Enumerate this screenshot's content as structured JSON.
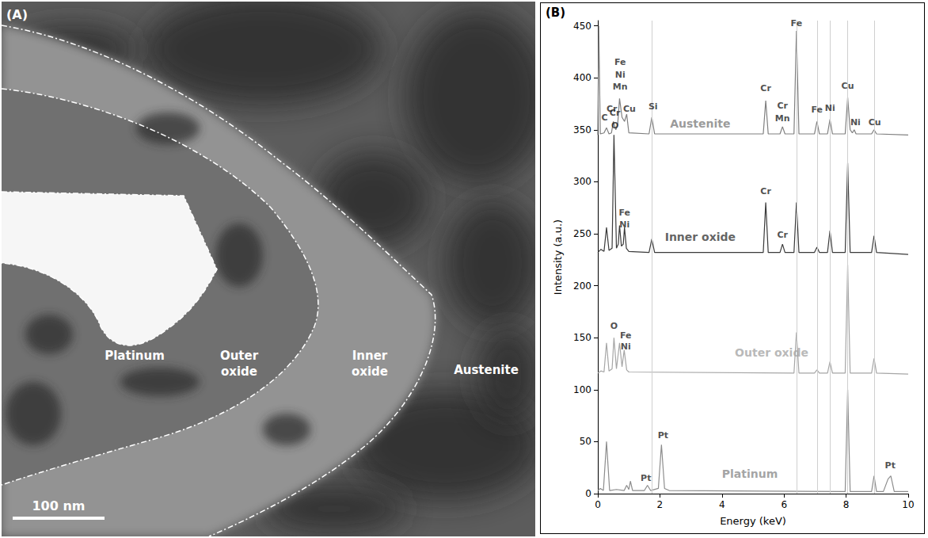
{
  "panel_a": {
    "label": "(A)",
    "regions": [
      "Platinum",
      "Outer oxide",
      "Inner oxide",
      "Austenite"
    ],
    "scale_bar": "100 nm"
  },
  "chart_data": {
    "type": "line",
    "panel_label": "(B)",
    "xlabel": "Energy (keV)",
    "ylabel": "Intensity (a.u.)",
    "xlim": [
      0,
      10
    ],
    "ylim": [
      0,
      455
    ],
    "xticks": [
      0,
      2,
      4,
      6,
      8,
      10
    ],
    "yticks": [
      0,
      50,
      100,
      150,
      200,
      250,
      300,
      350,
      400,
      450
    ],
    "grid": false,
    "reference_lines": [
      1.74,
      6.4,
      7.06,
      7.48,
      8.05,
      8.9
    ],
    "series": [
      {
        "name": "Austenite",
        "color": "#7f7f7f",
        "label_at": [
          3.3,
          356
        ],
        "x": [
          0,
          0.03,
          0.08,
          0.2,
          0.28,
          0.36,
          0.44,
          0.5,
          0.58,
          0.64,
          0.7,
          0.78,
          0.86,
          0.93,
          1.0,
          1.65,
          1.74,
          1.83,
          5.33,
          5.41,
          5.49,
          5.87,
          5.95,
          6.03,
          6.32,
          6.4,
          6.48,
          6.98,
          7.06,
          7.14,
          7.4,
          7.48,
          7.56,
          7.97,
          8.05,
          8.13,
          8.2,
          8.26,
          8.32,
          8.82,
          8.9,
          8.98,
          10
        ],
        "values": [
          345,
          450,
          346,
          347,
          352,
          346,
          347,
          358,
          350,
          355,
          380,
          362,
          358,
          365,
          347,
          346,
          362,
          346,
          346,
          378,
          346,
          346,
          353,
          346,
          346,
          445,
          346,
          346,
          358,
          346,
          346,
          360,
          346,
          346,
          381,
          350,
          347,
          350,
          346,
          346,
          350,
          346,
          345
        ],
        "annotations": [
          {
            "text": "C",
            "x": 0.22,
            "y": 362
          },
          {
            "text": "Cr",
            "x": 0.45,
            "y": 370
          },
          {
            "text": "Fe",
            "x": 0.72,
            "y": 415
          },
          {
            "text": "Ni",
            "x": 0.72,
            "y": 403
          },
          {
            "text": "Mn",
            "x": 0.72,
            "y": 391
          },
          {
            "text": "Cu",
            "x": 1.02,
            "y": 370
          },
          {
            "text": "Si",
            "x": 1.78,
            "y": 372
          },
          {
            "text": "Cr",
            "x": 5.41,
            "y": 390
          },
          {
            "text": "Cr",
            "x": 5.95,
            "y": 373
          },
          {
            "text": "Mn",
            "x": 5.95,
            "y": 361
          },
          {
            "text": "Fe",
            "x": 6.4,
            "y": 452
          },
          {
            "text": "Fe",
            "x": 7.06,
            "y": 369
          },
          {
            "text": "Ni",
            "x": 7.48,
            "y": 371
          },
          {
            "text": "Cu",
            "x": 8.05,
            "y": 392
          },
          {
            "text": "Ni",
            "x": 8.3,
            "y": 357
          },
          {
            "text": "Cu",
            "x": 8.92,
            "y": 357
          }
        ]
      },
      {
        "name": "Inner oxide",
        "color": "#3a3a3a",
        "label_at": [
          3.3,
          247
        ],
        "x": [
          0,
          0.1,
          0.2,
          0.28,
          0.36,
          0.46,
          0.52,
          0.6,
          0.66,
          0.7,
          0.76,
          0.82,
          0.86,
          0.92,
          1.0,
          1.65,
          1.74,
          1.83,
          5.33,
          5.41,
          5.49,
          5.87,
          5.95,
          6.03,
          6.32,
          6.4,
          6.48,
          6.98,
          7.06,
          7.14,
          7.4,
          7.48,
          7.56,
          7.97,
          8.05,
          8.13,
          8.82,
          8.9,
          8.98,
          10
        ],
        "values": [
          232,
          235,
          233,
          256,
          234,
          236,
          345,
          236,
          240,
          258,
          238,
          240,
          256,
          236,
          233,
          232,
          245,
          232,
          232,
          280,
          232,
          232,
          240,
          232,
          232,
          280,
          232,
          232,
          237,
          232,
          232,
          253,
          232,
          232,
          318,
          232,
          232,
          248,
          232,
          230
        ],
        "annotations": [
          {
            "text": "Cr",
            "x": 0.55,
            "y": 366
          },
          {
            "text": "O",
            "x": 0.55,
            "y": 354
          },
          {
            "text": "Fe",
            "x": 0.86,
            "y": 270
          },
          {
            "text": "Ni",
            "x": 0.86,
            "y": 259
          },
          {
            "text": "Cr",
            "x": 5.41,
            "y": 291
          },
          {
            "text": "Cr",
            "x": 5.95,
            "y": 249
          }
        ]
      },
      {
        "name": "Outer oxide",
        "color": "#a6a6a6",
        "label_at": [
          5.6,
          136
        ],
        "x": [
          0,
          0.1,
          0.2,
          0.28,
          0.36,
          0.46,
          0.52,
          0.6,
          0.7,
          0.78,
          0.85,
          0.93,
          1.0,
          6.32,
          6.4,
          6.48,
          6.98,
          7.06,
          7.14,
          7.4,
          7.48,
          7.56,
          7.97,
          8.05,
          8.13,
          8.82,
          8.9,
          8.98,
          10
        ],
        "values": [
          116,
          118,
          117,
          145,
          118,
          120,
          150,
          120,
          145,
          122,
          138,
          119,
          117,
          116,
          155,
          116,
          116,
          119,
          116,
          116,
          127,
          116,
          116,
          220,
          116,
          116,
          130,
          116,
          115
        ],
        "annotations": [
          {
            "text": "O",
            "x": 0.52,
            "y": 161
          },
          {
            "text": "Fe",
            "x": 0.9,
            "y": 152
          },
          {
            "text": "Ni",
            "x": 0.9,
            "y": 141
          }
        ]
      },
      {
        "name": "Platinum",
        "color": "#8c8c8c",
        "label_at": [
          4.9,
          19
        ],
        "x": [
          0,
          0.08,
          0.18,
          0.28,
          0.38,
          0.6,
          0.85,
          0.93,
          1.0,
          1.05,
          1.12,
          1.5,
          1.6,
          1.7,
          1.95,
          2.05,
          2.15,
          2.3,
          7.97,
          8.05,
          8.13,
          8.82,
          8.9,
          8.98,
          9.2,
          9.35,
          9.44,
          9.55,
          10
        ],
        "values": [
          3,
          5,
          3,
          50,
          3,
          4,
          3,
          8,
          4,
          12,
          3,
          3,
          8,
          3,
          5,
          47,
          5,
          3,
          2,
          100,
          2,
          2,
          17,
          2,
          2,
          14,
          17,
          2,
          2
        ],
        "annotations": [
          {
            "text": "Pt",
            "x": 1.55,
            "y": 15
          },
          {
            "text": "Pt",
            "x": 2.1,
            "y": 56
          },
          {
            "text": "Pt",
            "x": 9.42,
            "y": 27
          }
        ]
      }
    ]
  }
}
